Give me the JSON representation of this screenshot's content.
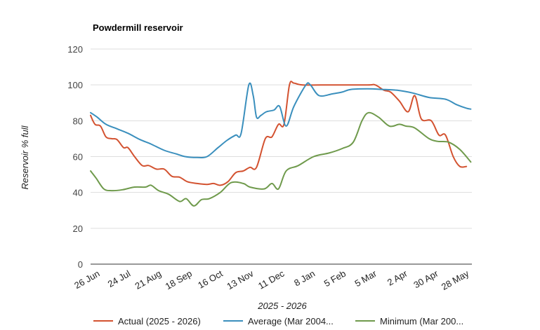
{
  "chart_data": {
    "type": "line",
    "title": "Powdermill reservoir",
    "xlabel": "2025 - 2026",
    "ylabel": "Reservoir % full",
    "ylim": [
      0,
      120
    ],
    "yticks": [
      0,
      20,
      40,
      60,
      80,
      100,
      120
    ],
    "x_tick_labels": [
      "26 Jun",
      "24 Jul",
      "21 Aug",
      "18 Sep",
      "16 Oct",
      "13 Nov",
      "11 Dec",
      "8 Jan",
      "5 Feb",
      "5 Mar",
      "2 Apr",
      "30 Apr",
      "28 May"
    ],
    "grid": true,
    "legend": "bottom",
    "series": [
      {
        "name": "Actual (2025 - 2026)",
        "color": "#d35230",
        "points": [
          [
            "2025-06-26",
            83
          ],
          [
            "2025-06-30",
            78
          ],
          [
            "2025-07-05",
            77
          ],
          [
            "2025-07-10",
            71
          ],
          [
            "2025-07-15",
            70
          ],
          [
            "2025-07-20",
            69.5
          ],
          [
            "2025-07-26",
            65
          ],
          [
            "2025-07-30",
            65
          ],
          [
            "2025-08-05",
            60
          ],
          [
            "2025-08-12",
            55
          ],
          [
            "2025-08-18",
            55
          ],
          [
            "2025-08-25",
            53
          ],
          [
            "2025-09-01",
            53
          ],
          [
            "2025-09-08",
            49
          ],
          [
            "2025-09-15",
            48.5
          ],
          [
            "2025-09-22",
            46
          ],
          [
            "2025-10-01",
            45
          ],
          [
            "2025-10-10",
            44.5
          ],
          [
            "2025-10-16",
            45
          ],
          [
            "2025-10-22",
            44
          ],
          [
            "2025-10-29",
            46
          ],
          [
            "2025-11-05",
            51
          ],
          [
            "2025-11-12",
            52
          ],
          [
            "2025-11-18",
            54
          ],
          [
            "2025-11-24",
            54
          ],
          [
            "2025-12-02",
            70
          ],
          [
            "2025-12-08",
            71
          ],
          [
            "2025-12-14",
            78
          ],
          [
            "2025-12-19",
            78
          ],
          [
            "2025-12-24",
            100
          ],
          [
            "2025-12-28",
            101
          ],
          [
            "2026-01-05",
            100
          ],
          [
            "2026-02-01",
            100
          ],
          [
            "2026-03-05",
            100
          ],
          [
            "2026-03-12",
            100
          ],
          [
            "2026-03-20",
            97
          ],
          [
            "2026-03-26",
            96
          ],
          [
            "2026-04-03",
            91
          ],
          [
            "2026-04-11",
            85
          ],
          [
            "2026-04-17",
            94
          ],
          [
            "2026-04-23",
            81
          ],
          [
            "2026-05-02",
            80
          ],
          [
            "2026-05-09",
            72
          ],
          [
            "2026-05-15",
            72
          ],
          [
            "2026-05-22",
            60
          ],
          [
            "2026-05-28",
            54.5
          ],
          [
            "2026-06-03",
            54.5
          ]
        ]
      },
      {
        "name": "Average (Mar 2004...",
        "color": "#3a8fbd",
        "points": [
          [
            "2025-06-26",
            84.5
          ],
          [
            "2025-07-02",
            82
          ],
          [
            "2025-07-10",
            78
          ],
          [
            "2025-07-20",
            75.5
          ],
          [
            "2025-07-30",
            73
          ],
          [
            "2025-08-10",
            69.5
          ],
          [
            "2025-08-20",
            67
          ],
          [
            "2025-09-01",
            63.5
          ],
          [
            "2025-09-12",
            61.5
          ],
          [
            "2025-09-20",
            60
          ],
          [
            "2025-10-01",
            59.5
          ],
          [
            "2025-10-10",
            60
          ],
          [
            "2025-10-20",
            65
          ],
          [
            "2025-10-28",
            69
          ],
          [
            "2025-11-05",
            72
          ],
          [
            "2025-11-10",
            73
          ],
          [
            "2025-11-17",
            100
          ],
          [
            "2025-11-21",
            94
          ],
          [
            "2025-11-24",
            82
          ],
          [
            "2025-11-28",
            83
          ],
          [
            "2025-12-03",
            85
          ],
          [
            "2025-12-10",
            86
          ],
          [
            "2025-12-15",
            88
          ],
          [
            "2025-12-21",
            77
          ],
          [
            "2025-12-28",
            88
          ],
          [
            "2026-01-08",
            100
          ],
          [
            "2026-01-12",
            100
          ],
          [
            "2026-01-20",
            94
          ],
          [
            "2026-02-01",
            95
          ],
          [
            "2026-02-10",
            96
          ],
          [
            "2026-02-18",
            97.5
          ],
          [
            "2026-03-05",
            97.8
          ],
          [
            "2026-03-18",
            97.5
          ],
          [
            "2026-04-01",
            97
          ],
          [
            "2026-04-15",
            95.5
          ],
          [
            "2026-04-30",
            93
          ],
          [
            "2026-05-15",
            92
          ],
          [
            "2026-05-25",
            89
          ],
          [
            "2026-06-03",
            87
          ],
          [
            "2026-06-07",
            86.5
          ]
        ]
      },
      {
        "name": "Minimum (Mar 200...",
        "color": "#6f9a4c",
        "points": [
          [
            "2025-06-26",
            52
          ],
          [
            "2025-07-01",
            48
          ],
          [
            "2025-07-08",
            42
          ],
          [
            "2025-07-15",
            41
          ],
          [
            "2025-07-25",
            41.5
          ],
          [
            "2025-08-05",
            43
          ],
          [
            "2025-08-15",
            43
          ],
          [
            "2025-08-20",
            44
          ],
          [
            "2025-08-27",
            41
          ],
          [
            "2025-09-05",
            39
          ],
          [
            "2025-09-15",
            35
          ],
          [
            "2025-09-21",
            36.5
          ],
          [
            "2025-09-28",
            32.5
          ],
          [
            "2025-10-05",
            36
          ],
          [
            "2025-10-12",
            36.5
          ],
          [
            "2025-10-22",
            40
          ],
          [
            "2025-11-01",
            45.5
          ],
          [
            "2025-11-12",
            45
          ],
          [
            "2025-11-18",
            43
          ],
          [
            "2025-12-01",
            42
          ],
          [
            "2025-12-08",
            45
          ],
          [
            "2025-12-14",
            42
          ],
          [
            "2025-12-21",
            52
          ],
          [
            "2026-01-01",
            55
          ],
          [
            "2026-01-15",
            60
          ],
          [
            "2026-01-29",
            62
          ],
          [
            "2026-02-10",
            64.5
          ],
          [
            "2026-02-20",
            68
          ],
          [
            "2026-02-28",
            80
          ],
          [
            "2026-03-06",
            84.5
          ],
          [
            "2026-03-15",
            82
          ],
          [
            "2026-03-25",
            77
          ],
          [
            "2026-04-03",
            78
          ],
          [
            "2026-04-09",
            77
          ],
          [
            "2026-04-17",
            76
          ],
          [
            "2026-04-30",
            70
          ],
          [
            "2026-05-08",
            68.5
          ],
          [
            "2026-05-18",
            68
          ],
          [
            "2026-05-28",
            64
          ],
          [
            "2026-06-07",
            57
          ]
        ]
      }
    ]
  }
}
